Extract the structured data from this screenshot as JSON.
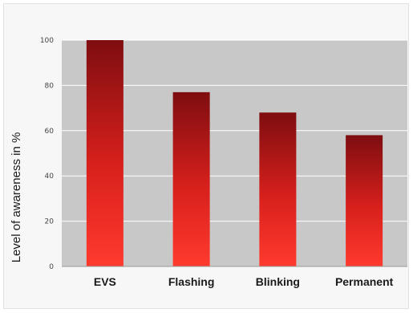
{
  "chart_data": {
    "type": "bar",
    "categories": [
      "EVS",
      "Flashing",
      "Blinking",
      "Permanent"
    ],
    "values": [
      100,
      77,
      68,
      58
    ],
    "ylabel": "Level of awareness in %",
    "xlabel": "",
    "ylim": [
      0,
      100
    ],
    "yticks": [
      "0",
      "20",
      "40",
      "60",
      "80",
      "100"
    ],
    "grid": true,
    "colors": {
      "plot_bg": "#c8c8c8",
      "bar_top": "#7e0d10",
      "bar_bottom": "#ff3a2e",
      "gridline": "#ffffff"
    }
  }
}
